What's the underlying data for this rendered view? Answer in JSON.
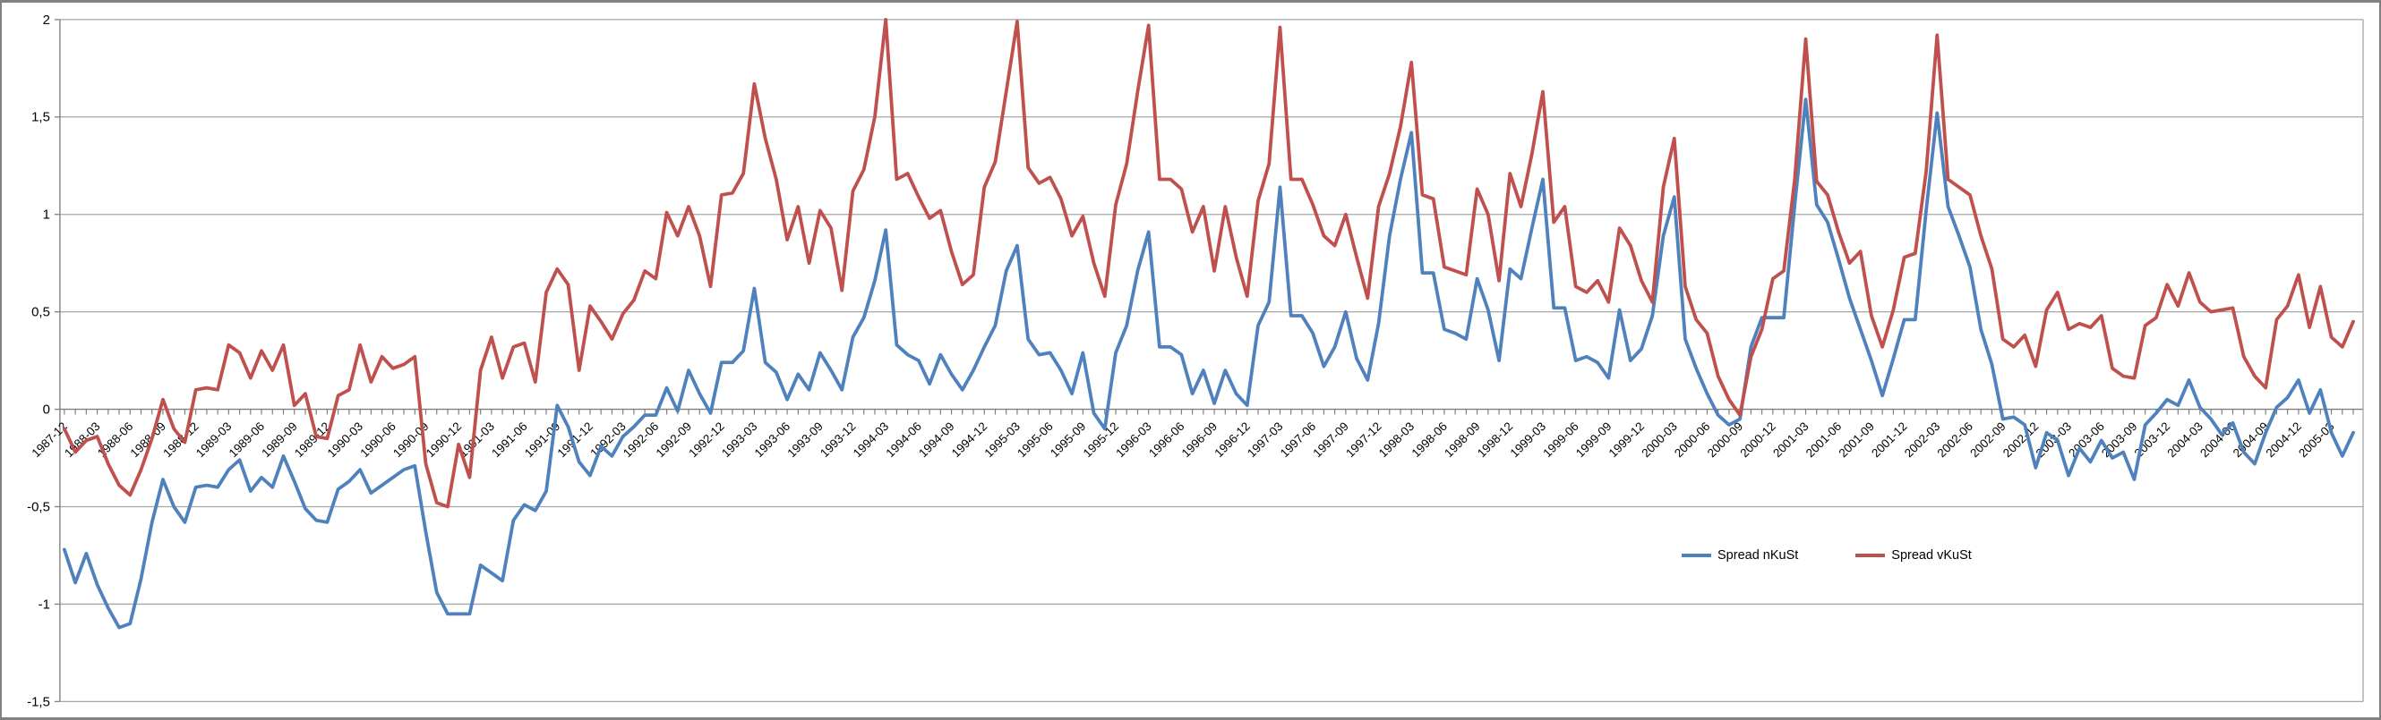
{
  "chart_data": {
    "type": "line",
    "title": "",
    "xlabel": "",
    "ylabel": "",
    "x_monthly_start": "1987-12",
    "x_monthly_end": "2005-05",
    "n_points": 210,
    "tick_every_months": 3,
    "x_tick_labels": [
      "1987-12",
      "1988-03",
      "1988-06",
      "1988-09",
      "1988-12",
      "1989-03",
      "1989-06",
      "1989-09",
      "1989-12",
      "1990-03",
      "1990-06",
      "1990-09",
      "1990-12",
      "1991-03",
      "1991-06",
      "1991-09",
      "1991-12",
      "1992-03",
      "1992-06",
      "1992-09",
      "1992-12",
      "1993-03",
      "1993-06",
      "1993-09",
      "1993-12",
      "1994-03",
      "1994-06",
      "1994-09",
      "1994-12",
      "1995-03",
      "1995-06",
      "1995-09",
      "1995-12",
      "1996-03",
      "1996-06",
      "1996-09",
      "1996-12",
      "1997-03",
      "1997-06",
      "1997-09",
      "1997-12",
      "1998-03",
      "1998-06",
      "1998-09",
      "1998-12",
      "1999-03",
      "1999-06",
      "1999-09",
      "1999-12",
      "2000-03",
      "2000-06",
      "2000-09",
      "2000-12",
      "2001-03",
      "2001-06",
      "2001-09",
      "2001-12",
      "2002-03",
      "2002-06",
      "2002-09",
      "2002-12",
      "2003-03",
      "2003-06",
      "2003-09",
      "2003-12",
      "2004-03",
      "2004-06",
      "2004-09",
      "2004-12",
      "2005-03"
    ],
    "ylim": [
      -1.5,
      2
    ],
    "y_tick_step": 0.5,
    "y_tick_labels": [
      "2",
      "1,5",
      "1",
      "0,5",
      "0",
      "-0,5",
      "-1",
      "-1,5"
    ],
    "grid": true,
    "decimal_separator": ",",
    "legend_position": "inside-bottom-right",
    "colors": {
      "grid": "#A6A6A6",
      "axis": "#808080",
      "tick": "#808080",
      "label": "#000000",
      "frame": "#818181"
    },
    "series": [
      {
        "name": "Spread nKuSt",
        "color": "#4F81BD",
        "values": [
          -0.72,
          -0.89,
          -0.74,
          -0.9,
          -1.02,
          -1.12,
          -1.1,
          -0.87,
          -0.58,
          -0.36,
          -0.5,
          -0.58,
          -0.4,
          -0.39,
          -0.4,
          -0.31,
          -0.26,
          -0.42,
          -0.35,
          -0.4,
          -0.24,
          -0.37,
          -0.51,
          -0.57,
          -0.58,
          -0.41,
          -0.37,
          -0.31,
          -0.43,
          -0.39,
          -0.35,
          -0.31,
          -0.29,
          -0.63,
          -0.94,
          -1.05,
          -1.05,
          -1.05,
          -0.8,
          -0.84,
          -0.88,
          -0.57,
          -0.49,
          -0.52,
          -0.42,
          0.02,
          -0.09,
          -0.27,
          -0.34,
          -0.19,
          -0.24,
          -0.14,
          -0.09,
          -0.03,
          -0.03,
          0.11,
          -0.01,
          0.2,
          0.08,
          -0.02,
          0.24,
          0.24,
          0.3,
          0.62,
          0.24,
          0.19,
          0.05,
          0.18,
          0.1,
          0.29,
          0.2,
          0.1,
          0.37,
          0.47,
          0.66,
          0.92,
          0.33,
          0.28,
          0.25,
          0.13,
          0.28,
          0.18,
          0.1,
          0.2,
          0.32,
          0.43,
          0.71,
          0.84,
          0.36,
          0.28,
          0.29,
          0.2,
          0.08,
          0.29,
          -0.02,
          -0.1,
          0.29,
          0.43,
          0.71,
          0.91,
          0.32,
          0.32,
          0.28,
          0.08,
          0.2,
          0.03,
          0.2,
          0.08,
          0.02,
          0.43,
          0.55,
          1.14,
          0.48,
          0.48,
          0.39,
          0.22,
          0.32,
          0.5,
          0.26,
          0.15,
          0.44,
          0.89,
          1.18,
          1.42,
          0.7,
          0.7,
          0.41,
          0.39,
          0.36,
          0.67,
          0.51,
          0.25,
          0.72,
          0.67,
          0.93,
          1.18,
          0.52,
          0.52,
          0.25,
          0.27,
          0.24,
          0.16,
          0.51,
          0.25,
          0.31,
          0.48,
          0.89,
          1.09,
          0.36,
          0.21,
          0.08,
          -0.03,
          -0.08,
          -0.05,
          0.32,
          0.47,
          0.47,
          0.47,
          1.05,
          1.59,
          1.05,
          0.96,
          0.77,
          0.57,
          0.41,
          0.25,
          0.07,
          0.26,
          0.46,
          0.46,
          1.02,
          1.52,
          1.04,
          0.89,
          0.73,
          0.41,
          0.23,
          -0.05,
          -0.04,
          -0.08,
          -0.3,
          -0.12,
          -0.16,
          -0.34,
          -0.2,
          -0.27,
          -0.16,
          -0.25,
          -0.22,
          -0.36,
          -0.08,
          -0.02,
          0.05,
          0.02,
          0.15,
          0.01,
          -0.05,
          -0.13,
          -0.07,
          -0.22,
          -0.28,
          -0.12,
          0.01,
          0.06,
          0.15,
          -0.02,
          0.1,
          -0.12,
          -0.24,
          -0.12
        ]
      },
      {
        "name": "Spread vKuSt",
        "color": "#C0504D",
        "values": [
          -0.1,
          -0.22,
          -0.16,
          -0.14,
          -0.28,
          -0.39,
          -0.44,
          -0.31,
          -0.15,
          0.05,
          -0.1,
          -0.17,
          0.1,
          0.11,
          0.1,
          0.33,
          0.29,
          0.16,
          0.3,
          0.2,
          0.33,
          0.02,
          0.08,
          -0.14,
          -0.15,
          0.07,
          0.1,
          0.33,
          0.14,
          0.27,
          0.21,
          0.23,
          0.27,
          -0.28,
          -0.48,
          -0.5,
          -0.18,
          -0.35,
          0.2,
          0.37,
          0.16,
          0.32,
          0.34,
          0.14,
          0.6,
          0.72,
          0.64,
          0.2,
          0.53,
          0.45,
          0.36,
          0.49,
          0.56,
          0.71,
          0.67,
          1.01,
          0.89,
          1.04,
          0.89,
          0.63,
          1.1,
          1.11,
          1.21,
          1.67,
          1.39,
          1.18,
          0.87,
          1.04,
          0.75,
          1.02,
          0.93,
          0.61,
          1.12,
          1.23,
          1.5,
          2.0,
          1.18,
          1.21,
          1.09,
          0.98,
          1.02,
          0.81,
          0.64,
          0.69,
          1.14,
          1.27,
          1.63,
          1.99,
          1.24,
          1.16,
          1.19,
          1.08,
          0.89,
          0.99,
          0.75,
          0.58,
          1.05,
          1.26,
          1.63,
          1.97,
          1.18,
          1.18,
          1.13,
          0.91,
          1.04,
          0.71,
          1.04,
          0.78,
          0.58,
          1.07,
          1.26,
          1.96,
          1.18,
          1.18,
          1.05,
          0.89,
          0.84,
          1.0,
          0.78,
          0.57,
          1.04,
          1.21,
          1.45,
          1.78,
          1.1,
          1.08,
          0.73,
          0.71,
          0.69,
          1.13,
          1.0,
          0.66,
          1.21,
          1.04,
          1.31,
          1.63,
          0.96,
          1.04,
          0.63,
          0.6,
          0.66,
          0.55,
          0.93,
          0.84,
          0.66,
          0.55,
          1.14,
          1.39,
          0.63,
          0.46,
          0.39,
          0.17,
          0.05,
          -0.03,
          0.27,
          0.41,
          0.67,
          0.71,
          1.18,
          1.9,
          1.17,
          1.1,
          0.91,
          0.75,
          0.81,
          0.48,
          0.32,
          0.51,
          0.78,
          0.8,
          1.22,
          1.92,
          1.18,
          1.14,
          1.1,
          0.89,
          0.72,
          0.36,
          0.32,
          0.38,
          0.22,
          0.51,
          0.6,
          0.41,
          0.44,
          0.42,
          0.48,
          0.21,
          0.17,
          0.16,
          0.43,
          0.47,
          0.64,
          0.53,
          0.7,
          0.55,
          0.5,
          0.51,
          0.52,
          0.27,
          0.17,
          0.11,
          0.46,
          0.53,
          0.69,
          0.42,
          0.63,
          0.37,
          0.32,
          0.45
        ]
      }
    ]
  },
  "legend": {
    "items": [
      {
        "label": "Spread nKuSt"
      },
      {
        "label": "Spread vKuSt"
      }
    ]
  }
}
